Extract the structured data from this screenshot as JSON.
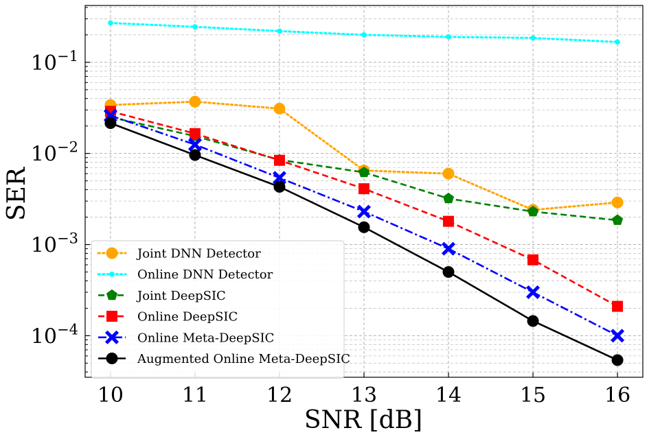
{
  "chart_data": {
    "type": "line",
    "title": "",
    "xlabel": "SNR [dB]",
    "ylabel": "SER",
    "yscale": "log",
    "xlim": [
      9.7,
      16.3
    ],
    "ylim": [
      3.5e-05,
      0.42
    ],
    "xticks": [
      10,
      11,
      12,
      13,
      14,
      15,
      16
    ],
    "yticks": [
      {
        "value": 0.0001,
        "base": "10",
        "exp": "−4"
      },
      {
        "value": 0.001,
        "base": "10",
        "exp": "−3"
      },
      {
        "value": 0.01,
        "base": "10",
        "exp": "−2"
      },
      {
        "value": 0.1,
        "base": "10",
        "exp": "−1"
      }
    ],
    "grid": true,
    "legend_position": "lower-left",
    "x": [
      10,
      11,
      12,
      13,
      14,
      15,
      16
    ],
    "series": [
      {
        "name": "Joint DNN Detector",
        "color": "#FFA500",
        "dash": "dotted",
        "marker": "circle",
        "values": [
          0.034,
          0.037,
          0.031,
          0.0065,
          0.006,
          0.0024,
          0.0029
        ]
      },
      {
        "name": "Online DNN Detector",
        "color": "#00FFFF",
        "dash": "dotted",
        "marker": "small-circle",
        "values": [
          0.27,
          0.245,
          0.22,
          0.2,
          0.19,
          0.185,
          0.167
        ]
      },
      {
        "name": "Joint DeepSIC",
        "color": "#008000",
        "dash": "dashed",
        "marker": "pentagon",
        "values": [
          0.025,
          0.0155,
          0.0085,
          0.0062,
          0.0032,
          0.0023,
          0.00185
        ]
      },
      {
        "name": "Online DeepSIC",
        "color": "#FF0000",
        "dash": "dashed",
        "marker": "square",
        "values": [
          0.029,
          0.0165,
          0.0084,
          0.0041,
          0.0018,
          0.00068,
          0.00021
        ]
      },
      {
        "name": "Online Meta-DeepSIC",
        "color": "#0000FF",
        "dash": "dashdot",
        "marker": "x",
        "values": [
          0.026,
          0.0125,
          0.0054,
          0.0023,
          0.0009,
          0.0003,
          0.0001
        ]
      },
      {
        "name": "Augmented Online Meta-DeepSIC",
        "color": "#000000",
        "dash": "solid",
        "marker": "circle",
        "values": [
          0.0215,
          0.0096,
          0.0043,
          0.00155,
          0.0005,
          0.000145,
          5.4e-05
        ]
      }
    ]
  }
}
